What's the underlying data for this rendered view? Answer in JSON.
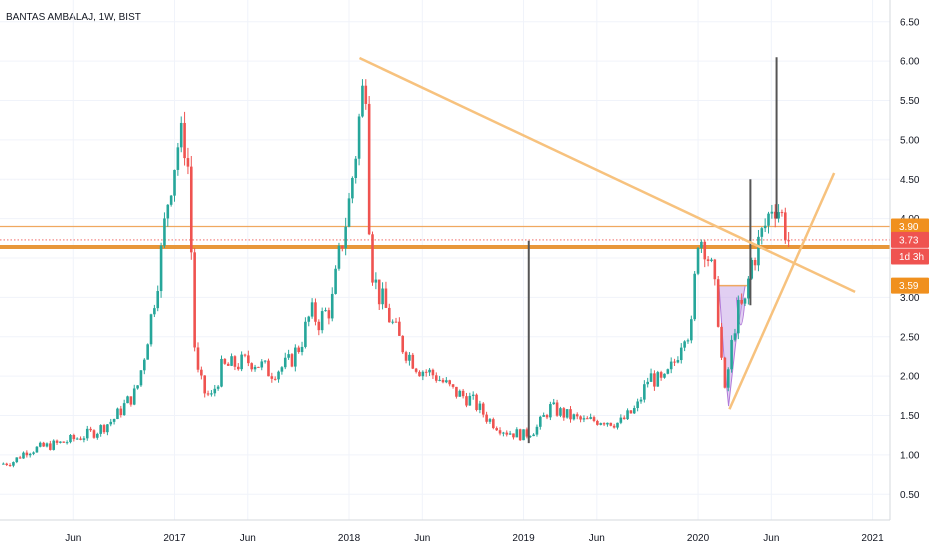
{
  "chart_data": {
    "type": "candlestick",
    "title": "BANTAS AMBALAJ, 1W, BIST",
    "colors": {
      "up": "#26a69a",
      "down": "#ef5350",
      "drawing": "#f7c27e",
      "horizontal_line": "#e8973a",
      "thin_line": "#f0a860",
      "vertical_bar": "#555555",
      "pattern_fill": "#c9a8e8",
      "tag_orange": "#f0901e",
      "tag_red": "#ef5350"
    },
    "ylim": [
      0.3,
      6.65
    ],
    "y_ticks": [
      "6.50",
      "6.00",
      "5.50",
      "5.00",
      "4.50",
      "4.00",
      "3.50",
      "3.00",
      "2.50",
      "2.00",
      "1.50",
      "1.00",
      "0.50"
    ],
    "x_ticks": [
      {
        "label": "Jun",
        "x": 2016.42
      },
      {
        "label": "2017",
        "x": 2017.0
      },
      {
        "label": "Jun",
        "x": 2017.42
      },
      {
        "label": "2018",
        "x": 2018.0
      },
      {
        "label": "Jun",
        "x": 2018.42
      },
      {
        "label": "2019",
        "x": 2019.0
      },
      {
        "label": "Jun",
        "x": 2019.42
      },
      {
        "label": "2020",
        "x": 2020.0
      },
      {
        "label": "Jun",
        "x": 2020.42
      },
      {
        "label": "2021",
        "x": 2021.0
      }
    ],
    "close_path": [
      [
        2016.0,
        0.88
      ],
      [
        2016.08,
        0.92
      ],
      [
        2016.15,
        1.05
      ],
      [
        2016.25,
        1.1
      ],
      [
        2016.35,
        1.15
      ],
      [
        2016.45,
        1.22
      ],
      [
        2016.55,
        1.3
      ],
      [
        2016.65,
        1.45
      ],
      [
        2016.72,
        1.65
      ],
      [
        2016.78,
        1.8
      ],
      [
        2016.82,
        2.2
      ],
      [
        2016.87,
        2.8
      ],
      [
        2016.92,
        3.5
      ],
      [
        2016.97,
        4.4
      ],
      [
        2017.02,
        4.95
      ],
      [
        2017.06,
        5.0
      ],
      [
        2017.08,
        4.6
      ],
      [
        2017.12,
        2.1
      ],
      [
        2017.17,
        1.8
      ],
      [
        2017.21,
        1.72
      ],
      [
        2017.27,
        2.1
      ],
      [
        2017.35,
        2.15
      ],
      [
        2017.45,
        2.2
      ],
      [
        2017.55,
        2.05
      ],
      [
        2017.65,
        2.15
      ],
      [
        2017.72,
        2.4
      ],
      [
        2017.78,
        2.8
      ],
      [
        2017.83,
        2.7
      ],
      [
        2017.9,
        2.9
      ],
      [
        2017.95,
        3.6
      ],
      [
        2018.0,
        4.2
      ],
      [
        2018.04,
        4.9
      ],
      [
        2018.07,
        5.5
      ],
      [
        2018.1,
        5.85
      ],
      [
        2018.12,
        3.5
      ],
      [
        2018.16,
        3.1
      ],
      [
        2018.22,
        2.8
      ],
      [
        2018.3,
        2.4
      ],
      [
        2018.4,
        2.1
      ],
      [
        2018.5,
        2.0
      ],
      [
        2018.6,
        1.8
      ],
      [
        2018.7,
        1.7
      ],
      [
        2018.8,
        1.45
      ],
      [
        2018.9,
        1.3
      ],
      [
        2019.0,
        1.25
      ],
      [
        2019.08,
        1.35
      ],
      [
        2019.15,
        1.6
      ],
      [
        2019.25,
        1.5
      ],
      [
        2019.35,
        1.42
      ],
      [
        2019.45,
        1.45
      ],
      [
        2019.55,
        1.4
      ],
      [
        2019.65,
        1.6
      ],
      [
        2019.72,
        2.0
      ],
      [
        2019.8,
        1.9
      ],
      [
        2019.87,
        2.2
      ],
      [
        2019.92,
        2.6
      ],
      [
        2019.96,
        2.55
      ],
      [
        2020.0,
        3.8
      ],
      [
        2020.04,
        3.7
      ],
      [
        2020.08,
        3.3
      ],
      [
        2020.12,
        2.7
      ],
      [
        2020.15,
        1.7
      ],
      [
        2020.18,
        2.2
      ],
      [
        2020.22,
        2.8
      ],
      [
        2020.27,
        2.9
      ],
      [
        2020.3,
        3.4
      ],
      [
        2020.35,
        3.7
      ],
      [
        2020.4,
        4.0
      ],
      [
        2020.43,
        4.25
      ],
      [
        2020.47,
        4.1
      ],
      [
        2020.52,
        3.73
      ]
    ],
    "gray_spikes": [
      {
        "x": 2019.03,
        "low": 1.15,
        "high": 3.72
      },
      {
        "x": 2020.3,
        "low": 2.9,
        "high": 4.5
      },
      {
        "x": 2020.45,
        "low": 4.0,
        "high": 6.05
      }
    ],
    "lines": [
      {
        "name": "descending-trendline",
        "x1": 2018.06,
        "y1": 6.04,
        "x2": 2020.9,
        "y2": 3.07
      },
      {
        "name": "ascending-trendline",
        "x1": 2020.18,
        "y1": 1.58,
        "x2": 2020.78,
        "y2": 4.58
      }
    ],
    "horizontal_levels": [
      {
        "name": "resistance",
        "value": 3.9,
        "label": "3.90"
      },
      {
        "name": "support",
        "value": 3.64
      }
    ],
    "price_tags": [
      {
        "label": "3.90",
        "value": 3.9,
        "style": "orange"
      },
      {
        "label": "3.73",
        "value": 3.73,
        "style": "red"
      },
      {
        "label": "1d 3h",
        "value": 3.52,
        "style": "red"
      },
      {
        "label": "3.59",
        "value": 3.15,
        "style": "orange"
      }
    ]
  }
}
